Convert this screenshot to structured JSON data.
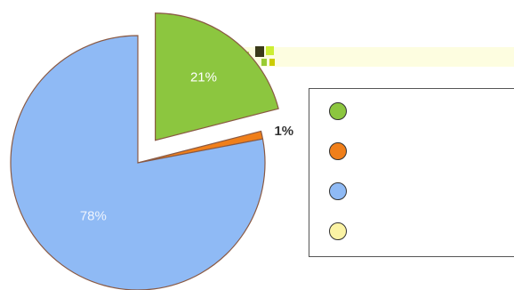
{
  "chart_data": {
    "type": "pie",
    "title": "",
    "slices": [
      {
        "label": "",
        "value": 21,
        "value_label": "21%",
        "color": "#8cc63f",
        "exploded": true,
        "label_color": "#ffffff"
      },
      {
        "label": "",
        "value": 1,
        "value_label": "1%",
        "color": "#f07f1a",
        "exploded": false,
        "label_color": "#333333"
      },
      {
        "label": "",
        "value": 78,
        "value_label": "78%",
        "color": "#8fbaf5",
        "exploded": false,
        "label_color": "#eef4fd"
      },
      {
        "label": "",
        "value": 0,
        "value_label": "",
        "color": "#fbf3a4",
        "exploded": false,
        "label_color": "#333333"
      }
    ],
    "legend_placement": "right",
    "start_angle_deg": 0,
    "direction": "clockwise"
  }
}
